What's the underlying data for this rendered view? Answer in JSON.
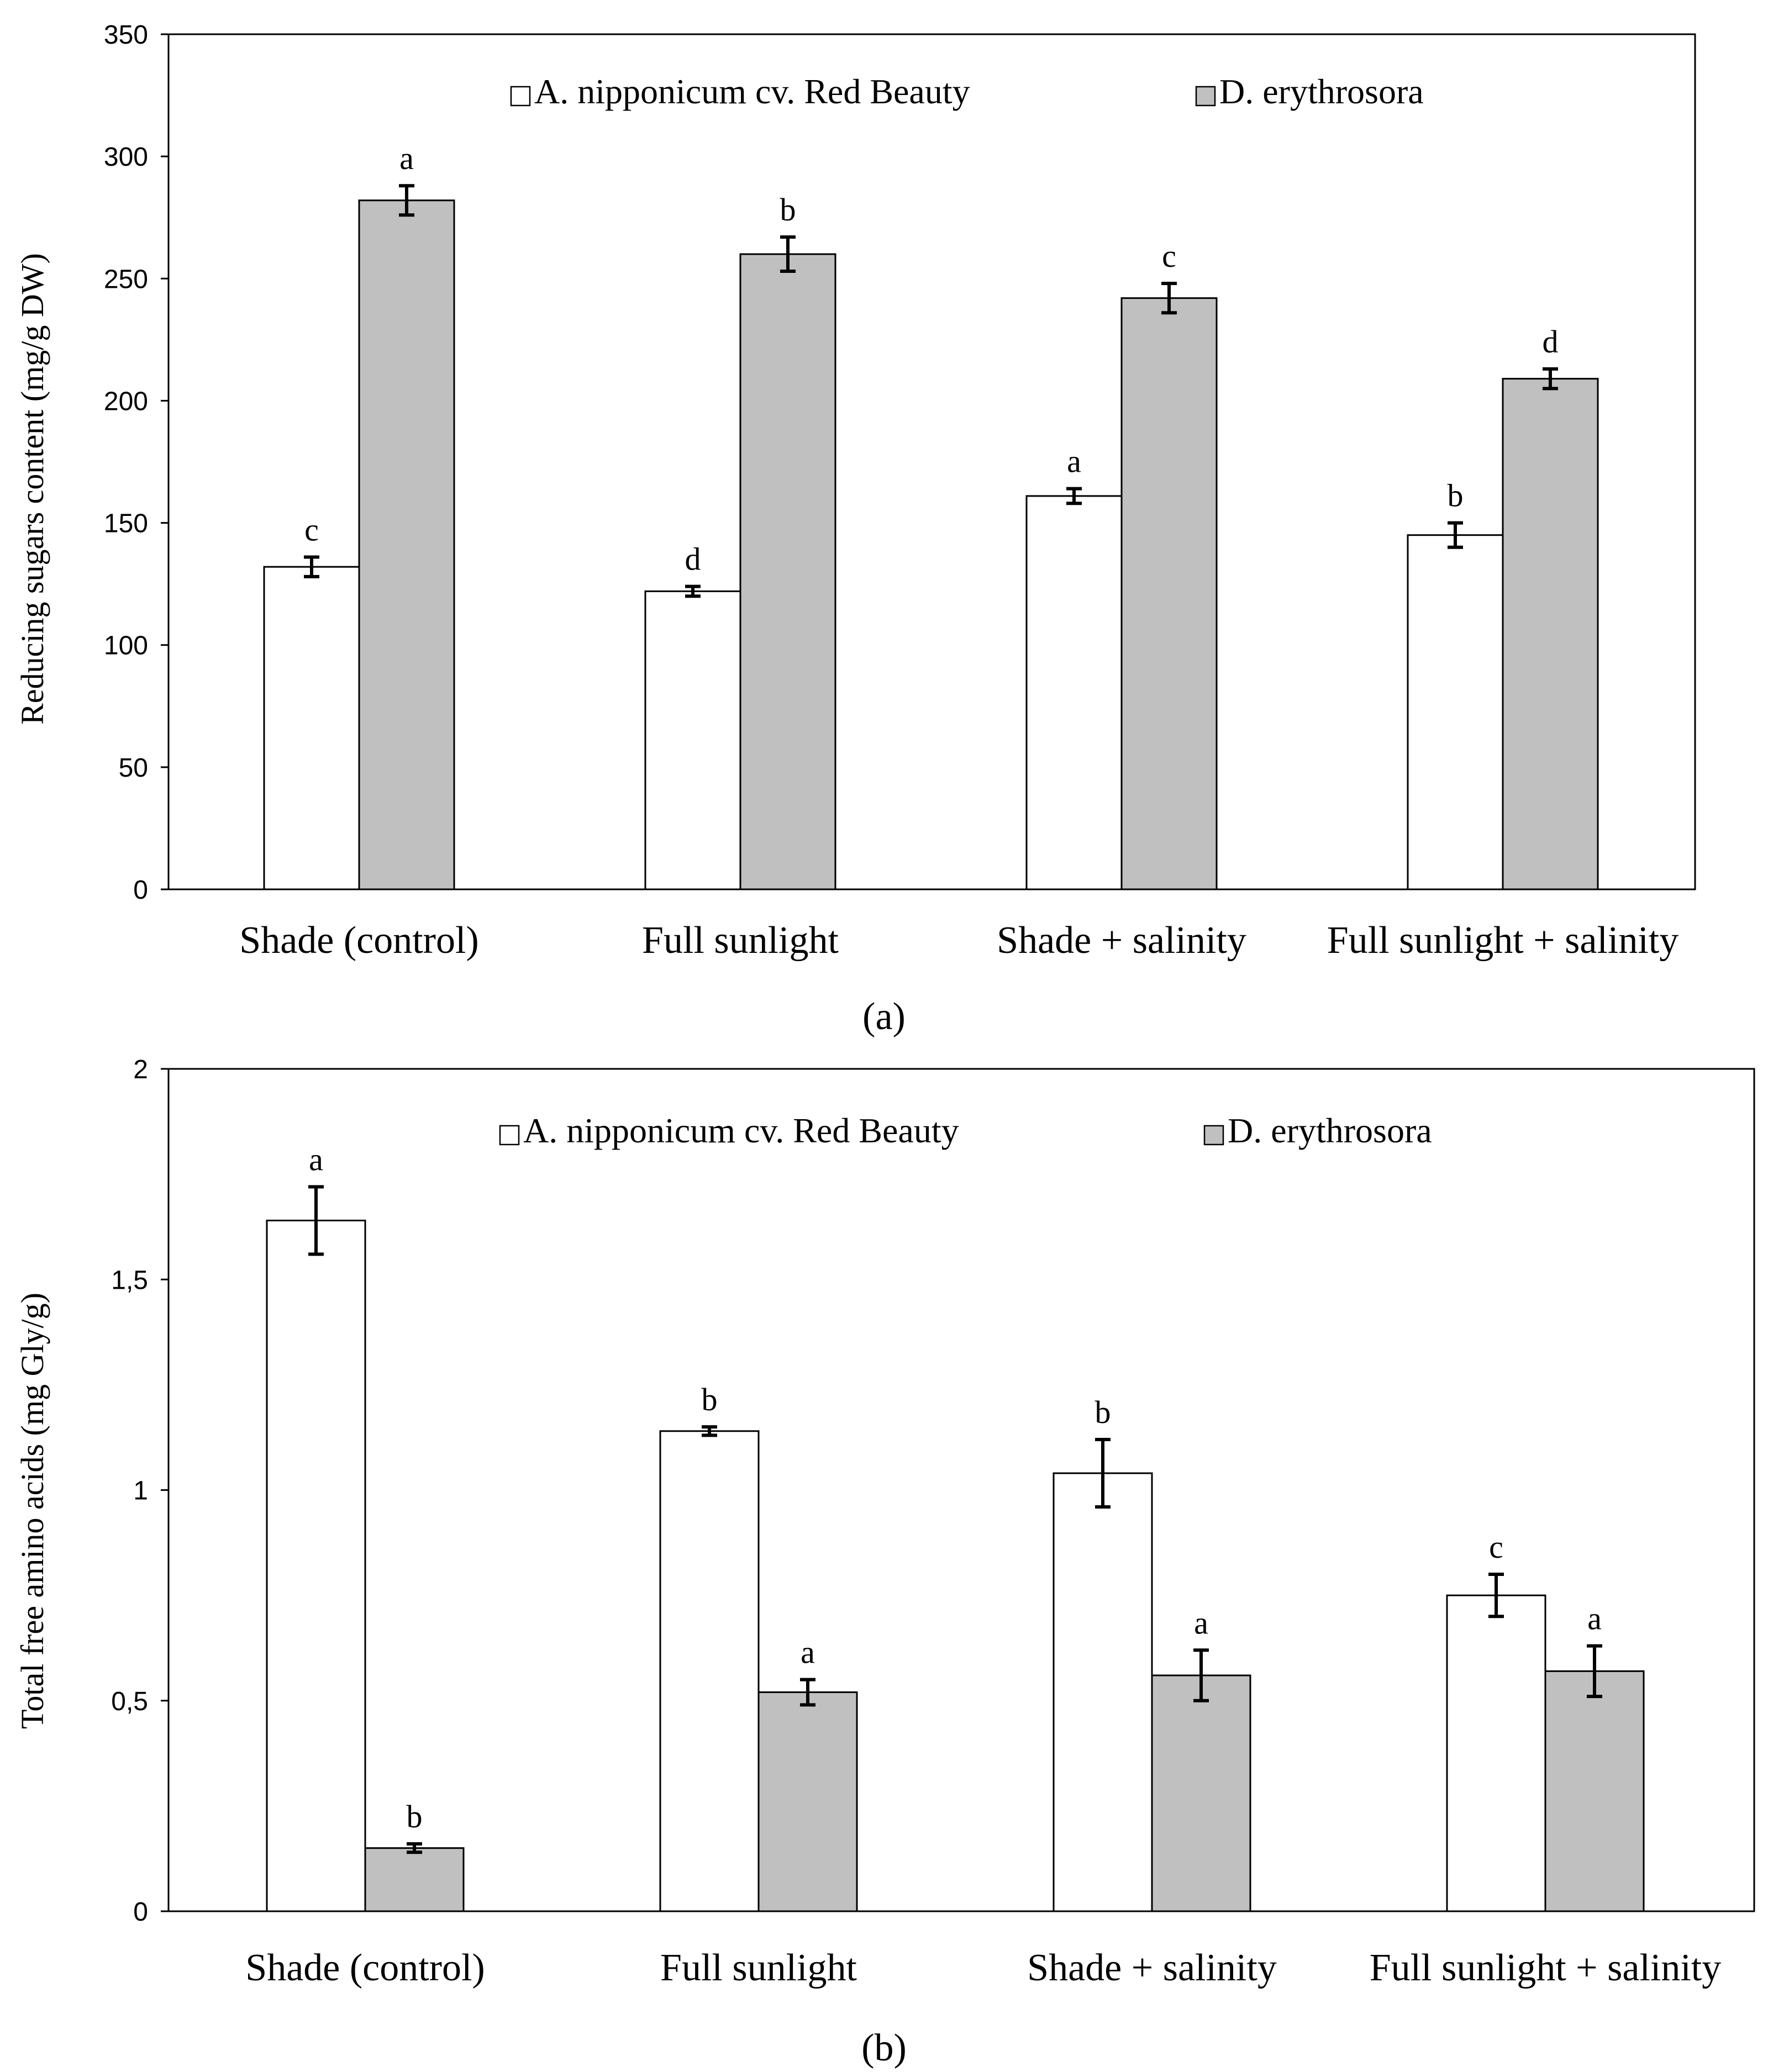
{
  "colors": {
    "series1_fill": "#ffffff",
    "series2_fill": "#c0c0c0",
    "stroke": "#000000"
  },
  "chart_data": [
    {
      "type": "bar",
      "panel_label": "(a)",
      "categories": [
        "Shade (control)",
        "Full sunlight",
        "Shade + salinity",
        "Full sunlight + salinity"
      ],
      "ylabel": "Reducing sugars content (mg/g DW)",
      "xlabel": "",
      "ylim": [
        0,
        350
      ],
      "yticks": [
        0,
        50,
        100,
        150,
        200,
        250,
        300,
        350
      ],
      "ytick_labels": [
        "0",
        "50",
        "100",
        "150",
        "200",
        "250",
        "300",
        "350"
      ],
      "legend_position": "top-center",
      "grid": false,
      "series": [
        {
          "name": "A. nipponicum cv. Red Beauty",
          "color": "#ffffff",
          "values": [
            132,
            122,
            161,
            145
          ],
          "errors": [
            4,
            2,
            3,
            5
          ],
          "letters": [
            "c",
            "d",
            "a",
            "b"
          ]
        },
        {
          "name": "D. erythrosora",
          "color": "#c0c0c0",
          "values": [
            282,
            260,
            242,
            209
          ],
          "errors": [
            6,
            7,
            6,
            4
          ],
          "letters": [
            "a",
            "b",
            "c",
            "d"
          ]
        }
      ]
    },
    {
      "type": "bar",
      "panel_label": "(b)",
      "categories": [
        "Shade (control)",
        "Full sunlight",
        "Shade + salinity",
        "Full sunlight + salinity"
      ],
      "ylabel": "Total free amino acids (mg Gly/g)",
      "xlabel": "",
      "ylim": [
        0,
        2
      ],
      "yticks": [
        0,
        0.5,
        1,
        1.5,
        2
      ],
      "ytick_labels": [
        "0",
        "0,5",
        "1",
        "1,5",
        "2"
      ],
      "legend_position": "top-center",
      "grid": false,
      "series": [
        {
          "name": "A. nipponicum cv. Red Beauty",
          "color": "#ffffff",
          "values": [
            1.64,
            1.14,
            1.04,
            0.75
          ],
          "errors": [
            0.08,
            0.01,
            0.08,
            0.05
          ],
          "letters": [
            "a",
            "b",
            "b",
            "c"
          ]
        },
        {
          "name": "D. erythrosora",
          "color": "#c0c0c0",
          "values": [
            0.15,
            0.52,
            0.56,
            0.57
          ],
          "errors": [
            0.01,
            0.03,
            0.06,
            0.06
          ],
          "letters": [
            "b",
            "a",
            "a",
            "a"
          ]
        }
      ]
    }
  ]
}
